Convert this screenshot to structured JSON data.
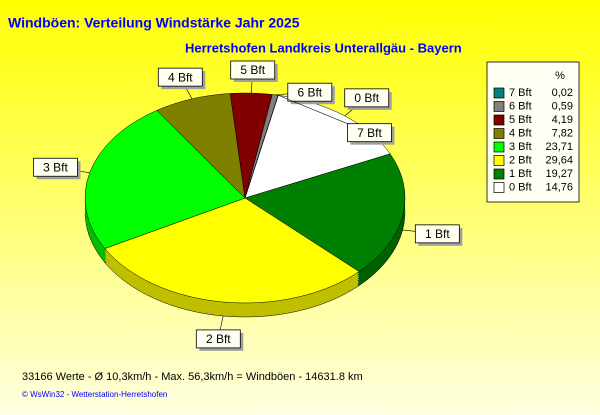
{
  "chart_data": {
    "type": "pie",
    "title": "Windböen: Verteilung Windstärke  Jahr 2025",
    "subtitle": "Herretshofen Landkreis Unterallgäu - Bayern",
    "legend_title": "%",
    "categories": [
      "7 Bft",
      "6 Bft",
      "5 Bft",
      "4 Bft",
      "3 Bft",
      "2 Bft",
      "1 Bft",
      "0 Bft"
    ],
    "values": [
      0.02,
      0.59,
      4.19,
      7.82,
      23.71,
      29.64,
      19.27,
      14.76
    ],
    "value_labels": [
      "0,02",
      "0,59",
      "4,19",
      "7,82",
      "23,71",
      "29,64",
      "19,27",
      "14,76"
    ],
    "colors": [
      "#008080",
      "#808080",
      "#800000",
      "#808000",
      "#00ff00",
      "#ffff00",
      "#008000",
      "#ffffff"
    ]
  },
  "footer": "33166 Werte   -   Ø 10,3km/h  -  Max. 56,3km/h = Windböen   -   14631.8 km",
  "credit": "© WsWin32  -  Wetterstation-Herretshofen"
}
